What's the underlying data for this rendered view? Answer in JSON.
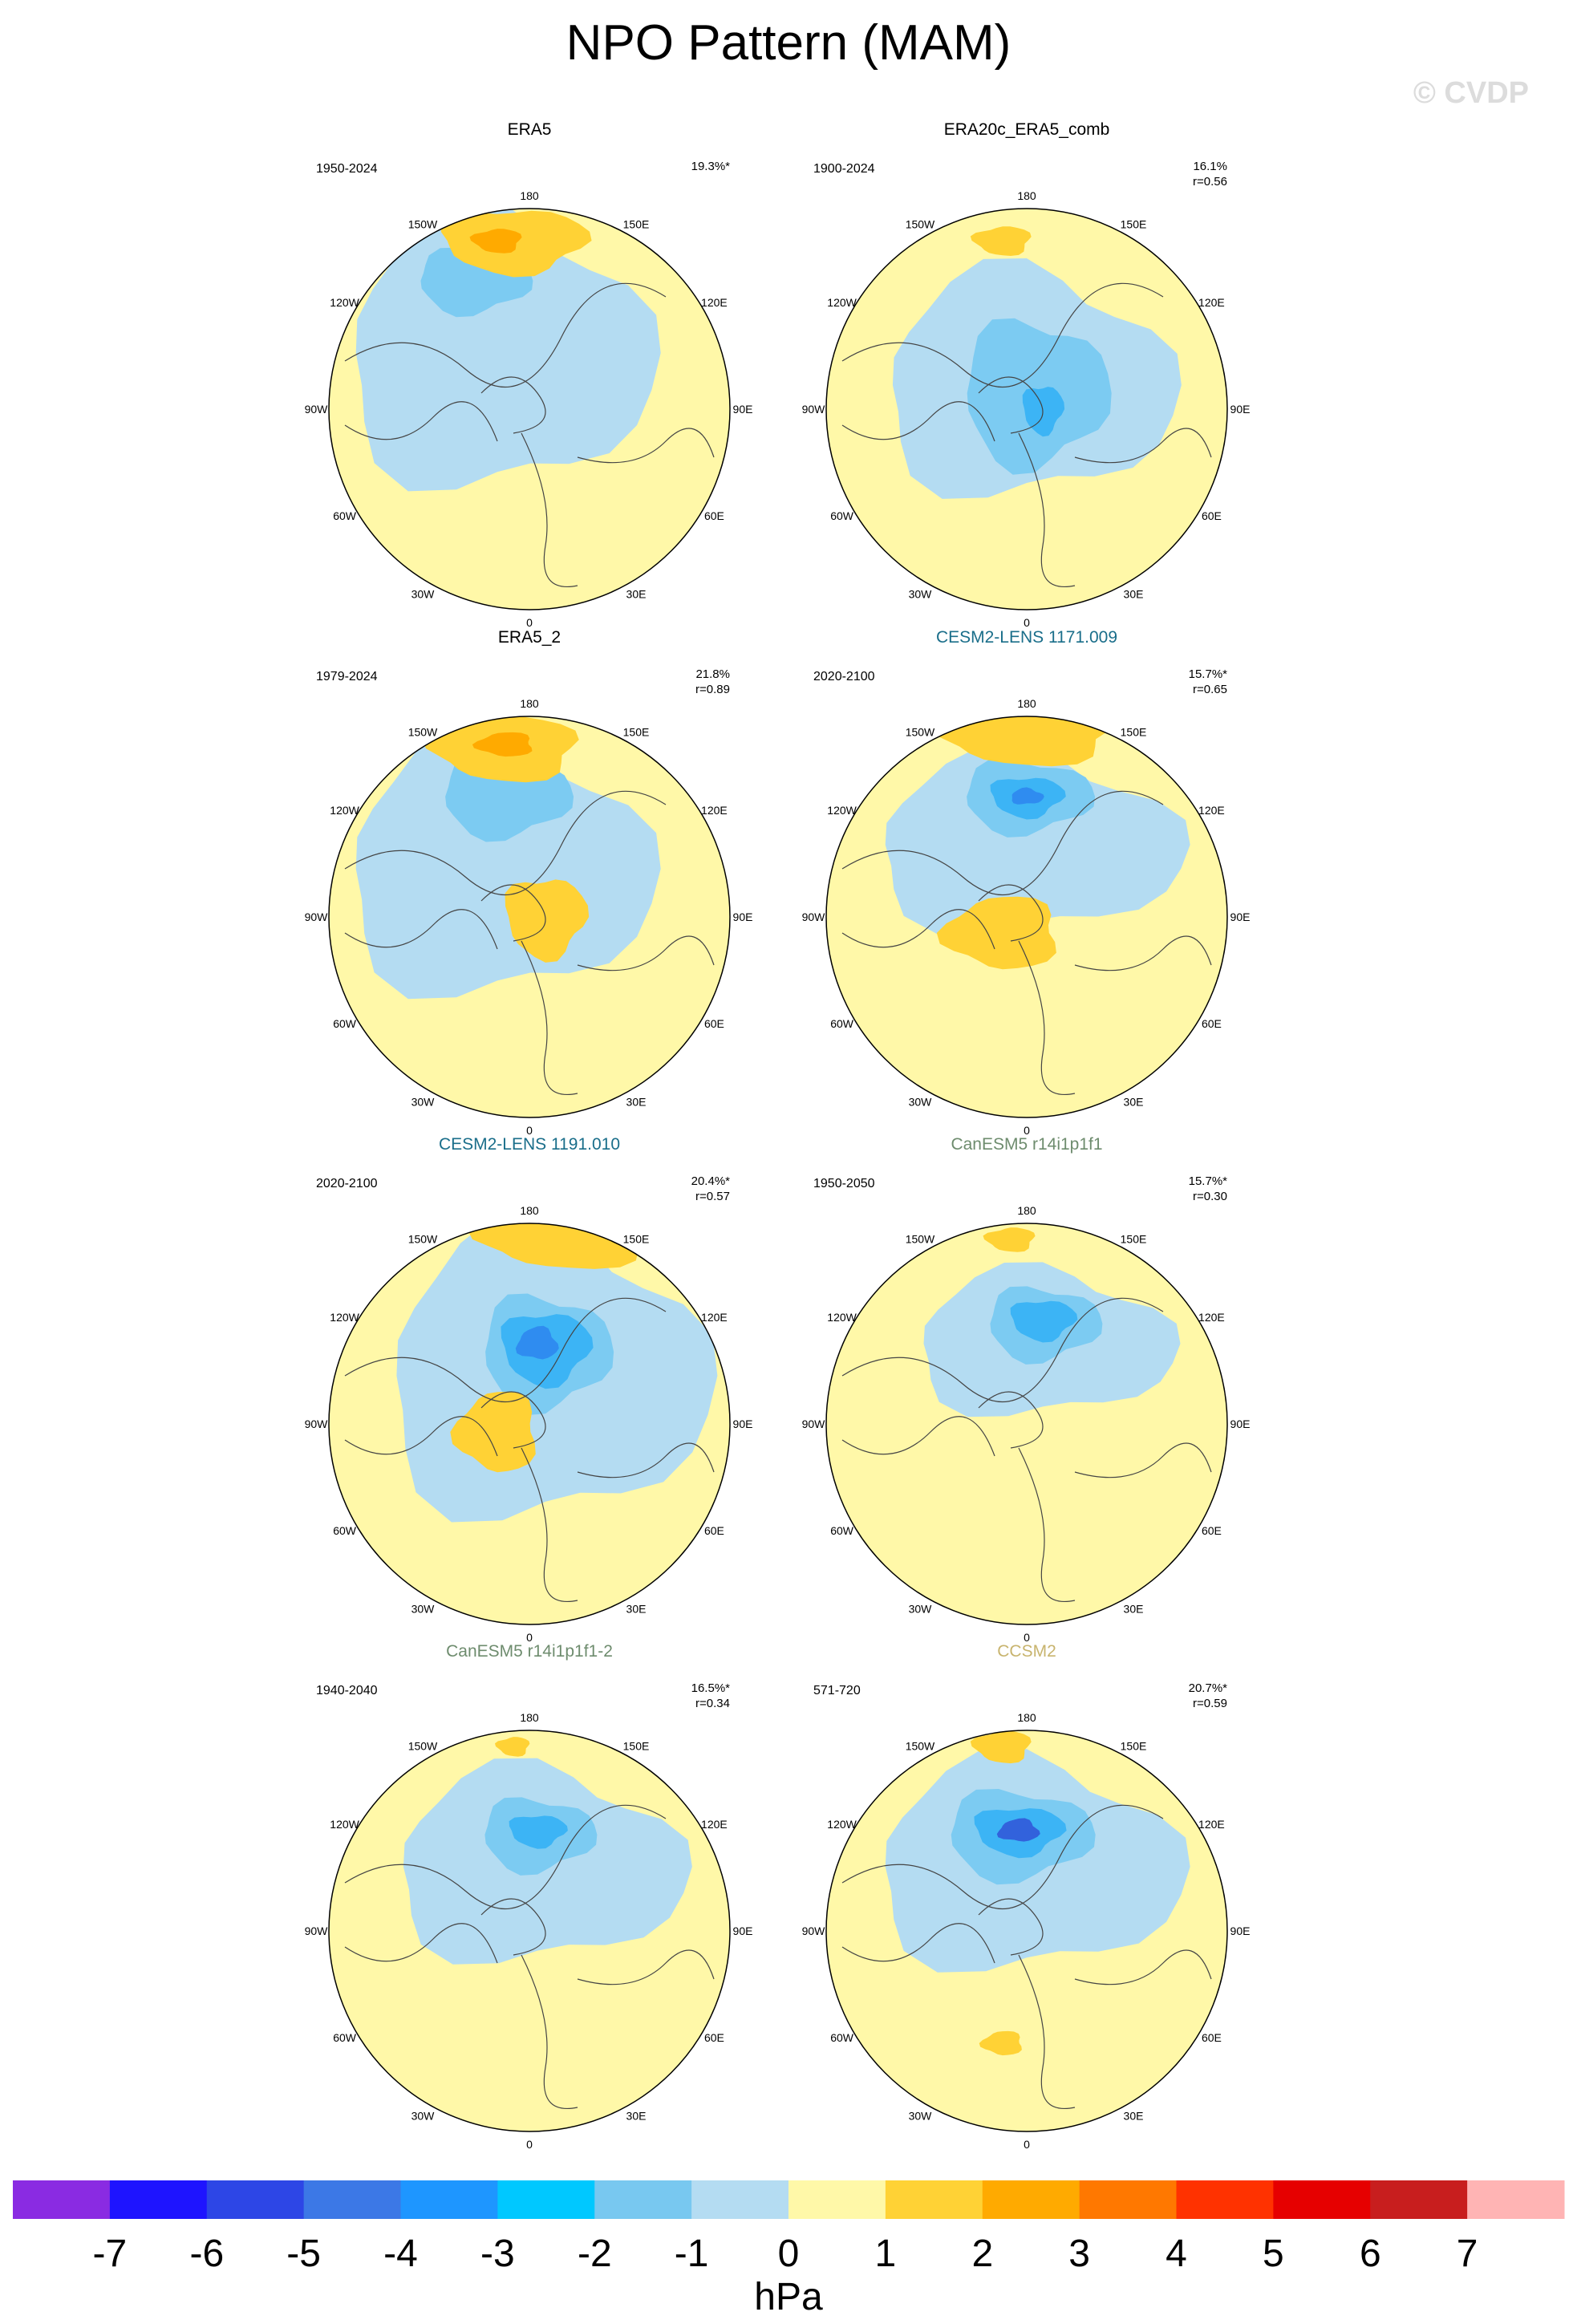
{
  "title": "NPO Pattern (MAM)",
  "watermark": "© CVDP",
  "lon_labels": [
    "180",
    "150E",
    "120E",
    "90E",
    "60E",
    "30E",
    "0",
    "30W",
    "60W",
    "90W",
    "120W",
    "150W"
  ],
  "colors": {
    "ocean_positive": "#fff8a8",
    "fill_neg1": "#b4dcf2",
    "fill_neg2": "#7ccbf2",
    "fill_neg3": "#3cb4f5",
    "fill_neg4": "#2f8cf0",
    "fill_neg5": "#3262dc",
    "fill_pos2": "#ffd235",
    "fill_pos3": "#ffaa00"
  },
  "panels": [
    {
      "name": "ERA5",
      "title_color": "#000000",
      "years": "1950-2024",
      "stat1": "19.3%*",
      "stat2": ""
    },
    {
      "name": "ERA20c_ERA5_comb",
      "title_color": "#000000",
      "years": "1900-2024",
      "stat1": "16.1%",
      "stat2": "r=0.56"
    },
    {
      "name": "ERA5_2",
      "title_color": "#000000",
      "years": "1979-2024",
      "stat1": "21.8%",
      "stat2": "r=0.89"
    },
    {
      "name": "CESM2-LENS 1171.009",
      "title_color": "#1a6e8a",
      "years": "2020-2100",
      "stat1": "15.7%*",
      "stat2": "r=0.65"
    },
    {
      "name": "CESM2-LENS 1191.010",
      "title_color": "#1a6e8a",
      "years": "2020-2100",
      "stat1": "20.4%*",
      "stat2": "r=0.57"
    },
    {
      "name": "CanESM5 r14i1p1f1",
      "title_color": "#6e8c6e",
      "years": "1950-2050",
      "stat1": "15.7%*",
      "stat2": "r=0.30"
    },
    {
      "name": "CanESM5 r14i1p1f1-2",
      "title_color": "#6e8c6e",
      "years": "1940-2040",
      "stat1": "16.5%*",
      "stat2": "r=0.34"
    },
    {
      "name": "CCSM2",
      "title_color": "#c8b46e",
      "years": "571-720",
      "stat1": "20.7%*",
      "stat2": "r=0.59"
    }
  ],
  "colorbar": {
    "unit": "hPa",
    "labels": [
      "-7",
      "-6",
      "-5",
      "-4",
      "-3",
      "-2",
      "-1",
      "0",
      "1",
      "2",
      "3",
      "4",
      "5",
      "6",
      "7"
    ],
    "colors": [
      "#8a2be2",
      "#1e14ff",
      "#2d46e6",
      "#3c78e6",
      "#1e96ff",
      "#00c8ff",
      "#78c8f0",
      "#b4dcf2",
      "#fff8a8",
      "#ffd235",
      "#ffaa00",
      "#ff7800",
      "#ff3200",
      "#e60000",
      "#c81e1e",
      "#ffb4b4"
    ]
  }
}
